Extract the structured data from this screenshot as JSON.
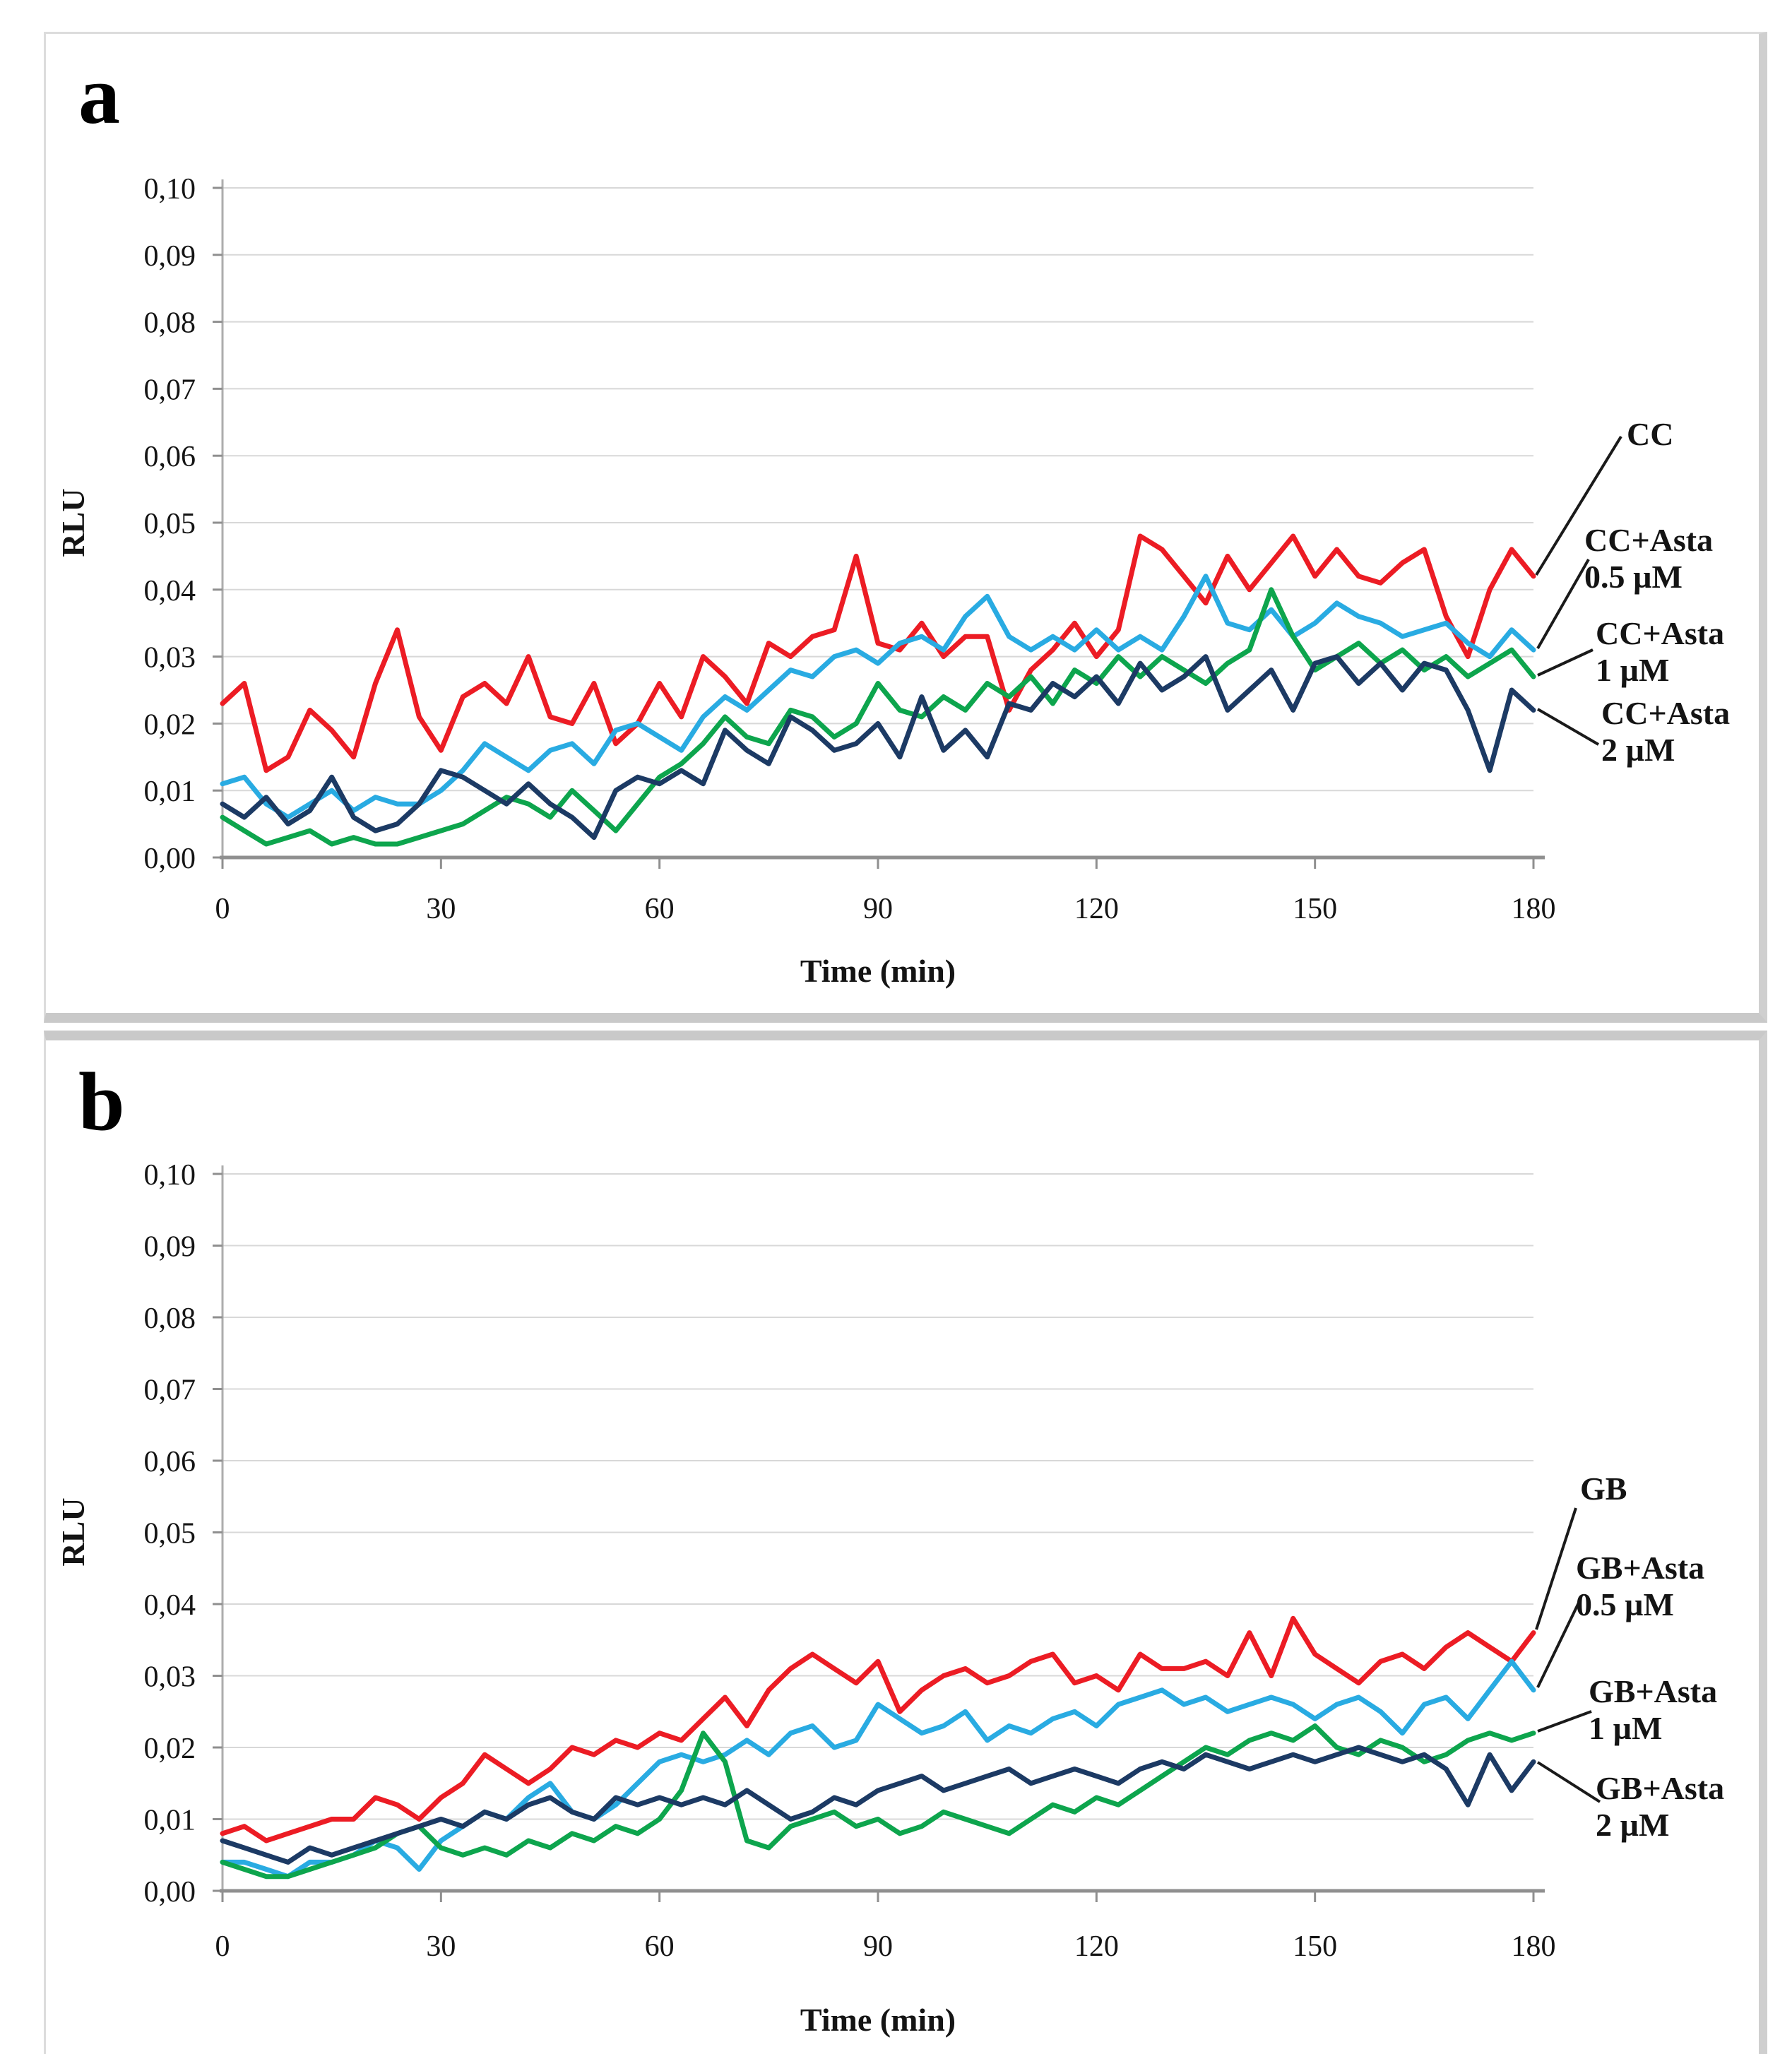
{
  "chart_data": [
    {
      "type": "line",
      "panel_label": "a",
      "xlabel": "Time (min)",
      "ylabel": "RLU",
      "xlim": [
        0,
        180
      ],
      "ylim": [
        0,
        0.1
      ],
      "x_ticks": [
        0,
        30,
        60,
        90,
        120,
        150,
        180
      ],
      "y_ticks": [
        0,
        0.01,
        0.02,
        0.03,
        0.04,
        0.05,
        0.06,
        0.07,
        0.08,
        0.09,
        0.1
      ],
      "y_tick_labels": [
        "0,00",
        "0,01",
        "0,02",
        "0,03",
        "0,04",
        "0,05",
        "0,06",
        "0,07",
        "0,08",
        "0,09",
        "0,10"
      ],
      "grid": true,
      "legend_position": "right",
      "x": [
        0,
        3,
        6,
        9,
        12,
        15,
        18,
        21,
        24,
        27,
        30,
        33,
        36,
        39,
        42,
        45,
        48,
        51,
        54,
        57,
        60,
        63,
        66,
        69,
        72,
        75,
        78,
        81,
        84,
        87,
        90,
        93,
        96,
        99,
        102,
        105,
        108,
        111,
        114,
        117,
        120,
        123,
        126,
        129,
        132,
        135,
        138,
        141,
        144,
        147,
        150,
        153,
        156,
        159,
        162,
        165,
        168,
        171,
        174,
        177,
        180
      ],
      "series": [
        {
          "name": "CC",
          "legend_lines": [
            "CC"
          ],
          "color": "#EC1C24",
          "values": [
            0.023,
            0.026,
            0.013,
            0.015,
            0.022,
            0.019,
            0.015,
            0.026,
            0.034,
            0.021,
            0.016,
            0.024,
            0.026,
            0.023,
            0.03,
            0.021,
            0.02,
            0.026,
            0.017,
            0.02,
            0.026,
            0.021,
            0.03,
            0.027,
            0.023,
            0.032,
            0.03,
            0.033,
            0.034,
            0.045,
            0.032,
            0.031,
            0.035,
            0.03,
            0.033,
            0.033,
            0.022,
            0.028,
            0.031,
            0.035,
            0.03,
            0.034,
            0.048,
            0.046,
            0.042,
            0.038,
            0.045,
            0.04,
            0.044,
            0.048,
            0.042,
            0.046,
            0.042,
            0.041,
            0.044,
            0.046,
            0.036,
            0.03,
            0.04,
            0.046,
            0.042
          ]
        },
        {
          "name": "CC+Asta 0.5 µM",
          "legend_lines": [
            "CC+Asta",
            "0.5 µM"
          ],
          "color": "#29ABE2",
          "values": [
            0.011,
            0.012,
            0.008,
            0.006,
            0.008,
            0.01,
            0.007,
            0.009,
            0.008,
            0.008,
            0.01,
            0.013,
            0.017,
            0.015,
            0.013,
            0.016,
            0.017,
            0.014,
            0.019,
            0.02,
            0.018,
            0.016,
            0.021,
            0.024,
            0.022,
            0.025,
            0.028,
            0.027,
            0.03,
            0.031,
            0.029,
            0.032,
            0.033,
            0.031,
            0.036,
            0.039,
            0.033,
            0.031,
            0.033,
            0.031,
            0.034,
            0.031,
            0.033,
            0.031,
            0.036,
            0.042,
            0.035,
            0.034,
            0.037,
            0.033,
            0.035,
            0.038,
            0.036,
            0.035,
            0.033,
            0.034,
            0.035,
            0.032,
            0.03,
            0.034,
            0.031
          ]
        },
        {
          "name": "CC+Asta 1 µM",
          "legend_lines": [
            "CC+Asta",
            "1 µM"
          ],
          "color": "#0DA54D",
          "values": [
            0.006,
            0.004,
            0.002,
            0.003,
            0.004,
            0.002,
            0.003,
            0.002,
            0.002,
            0.003,
            0.004,
            0.005,
            0.007,
            0.009,
            0.008,
            0.006,
            0.01,
            0.007,
            0.004,
            0.008,
            0.012,
            0.014,
            0.017,
            0.021,
            0.018,
            0.017,
            0.022,
            0.021,
            0.018,
            0.02,
            0.026,
            0.022,
            0.021,
            0.024,
            0.022,
            0.026,
            0.024,
            0.027,
            0.023,
            0.028,
            0.026,
            0.03,
            0.027,
            0.03,
            0.028,
            0.026,
            0.029,
            0.031,
            0.04,
            0.033,
            0.028,
            0.03,
            0.032,
            0.029,
            0.031,
            0.028,
            0.03,
            0.027,
            0.029,
            0.031,
            0.027
          ]
        },
        {
          "name": "CC+Asta 2 µM",
          "legend_lines": [
            "CC+Asta",
            "2 µM"
          ],
          "color": "#1C3A64",
          "values": [
            0.008,
            0.006,
            0.009,
            0.005,
            0.007,
            0.012,
            0.006,
            0.004,
            0.005,
            0.008,
            0.013,
            0.012,
            0.01,
            0.008,
            0.011,
            0.008,
            0.006,
            0.003,
            0.01,
            0.012,
            0.011,
            0.013,
            0.011,
            0.019,
            0.016,
            0.014,
            0.021,
            0.019,
            0.016,
            0.017,
            0.02,
            0.015,
            0.024,
            0.016,
            0.019,
            0.015,
            0.023,
            0.022,
            0.026,
            0.024,
            0.027,
            0.023,
            0.029,
            0.025,
            0.027,
            0.03,
            0.022,
            0.025,
            0.028,
            0.022,
            0.029,
            0.03,
            0.026,
            0.029,
            0.025,
            0.029,
            0.028,
            0.022,
            0.013,
            0.025,
            0.022
          ]
        }
      ]
    },
    {
      "type": "line",
      "panel_label": "b",
      "xlabel": "Time (min)",
      "ylabel": "RLU",
      "xlim": [
        0,
        180
      ],
      "ylim": [
        0,
        0.1
      ],
      "x_ticks": [
        0,
        30,
        60,
        90,
        120,
        150,
        180
      ],
      "y_ticks": [
        0,
        0.01,
        0.02,
        0.03,
        0.04,
        0.05,
        0.06,
        0.07,
        0.08,
        0.09,
        0.1
      ],
      "y_tick_labels": [
        "0,00",
        "0,01",
        "0,02",
        "0,03",
        "0,04",
        "0,05",
        "0,06",
        "0,07",
        "0,08",
        "0,09",
        "0,10"
      ],
      "grid": true,
      "legend_position": "right",
      "x": [
        0,
        3,
        6,
        9,
        12,
        15,
        18,
        21,
        24,
        27,
        30,
        33,
        36,
        39,
        42,
        45,
        48,
        51,
        54,
        57,
        60,
        63,
        66,
        69,
        72,
        75,
        78,
        81,
        84,
        87,
        90,
        93,
        96,
        99,
        102,
        105,
        108,
        111,
        114,
        117,
        120,
        123,
        126,
        129,
        132,
        135,
        138,
        141,
        144,
        147,
        150,
        153,
        156,
        159,
        162,
        165,
        168,
        171,
        174,
        177,
        180
      ],
      "series": [
        {
          "name": "GB",
          "legend_lines": [
            "GB"
          ],
          "color": "#EC1C24",
          "values": [
            0.008,
            0.009,
            0.007,
            0.008,
            0.009,
            0.01,
            0.01,
            0.013,
            0.012,
            0.01,
            0.013,
            0.015,
            0.019,
            0.017,
            0.015,
            0.017,
            0.02,
            0.019,
            0.021,
            0.02,
            0.022,
            0.021,
            0.024,
            0.027,
            0.023,
            0.028,
            0.031,
            0.033,
            0.031,
            0.029,
            0.032,
            0.025,
            0.028,
            0.03,
            0.031,
            0.029,
            0.03,
            0.032,
            0.033,
            0.029,
            0.03,
            0.028,
            0.033,
            0.031,
            0.031,
            0.032,
            0.03,
            0.036,
            0.03,
            0.038,
            0.033,
            0.031,
            0.029,
            0.032,
            0.033,
            0.031,
            0.034,
            0.036,
            0.034,
            0.032,
            0.036
          ]
        },
        {
          "name": "GB+Asta 0.5 µM",
          "legend_lines": [
            "GB+Asta",
            "0.5 µM"
          ],
          "color": "#29ABE2",
          "values": [
            0.004,
            0.004,
            0.003,
            0.002,
            0.004,
            0.004,
            0.005,
            0.007,
            0.006,
            0.003,
            0.007,
            0.009,
            0.011,
            0.01,
            0.013,
            0.015,
            0.011,
            0.01,
            0.012,
            0.015,
            0.018,
            0.019,
            0.018,
            0.019,
            0.021,
            0.019,
            0.022,
            0.023,
            0.02,
            0.021,
            0.026,
            0.024,
            0.022,
            0.023,
            0.025,
            0.021,
            0.023,
            0.022,
            0.024,
            0.025,
            0.023,
            0.026,
            0.027,
            0.028,
            0.026,
            0.027,
            0.025,
            0.026,
            0.027,
            0.026,
            0.024,
            0.026,
            0.027,
            0.025,
            0.022,
            0.026,
            0.027,
            0.024,
            0.028,
            0.032,
            0.028
          ]
        },
        {
          "name": "GB+Asta 1 µM",
          "legend_lines": [
            "GB+Asta",
            "1 µM"
          ],
          "color": "#0DA54D",
          "values": [
            0.004,
            0.003,
            0.002,
            0.002,
            0.003,
            0.004,
            0.005,
            0.006,
            0.008,
            0.009,
            0.006,
            0.005,
            0.006,
            0.005,
            0.007,
            0.006,
            0.008,
            0.007,
            0.009,
            0.008,
            0.01,
            0.014,
            0.022,
            0.018,
            0.007,
            0.006,
            0.009,
            0.01,
            0.011,
            0.009,
            0.01,
            0.008,
            0.009,
            0.011,
            0.01,
            0.009,
            0.008,
            0.01,
            0.012,
            0.011,
            0.013,
            0.012,
            0.014,
            0.016,
            0.018,
            0.02,
            0.019,
            0.021,
            0.022,
            0.021,
            0.023,
            0.02,
            0.019,
            0.021,
            0.02,
            0.018,
            0.019,
            0.021,
            0.022,
            0.021,
            0.022
          ]
        },
        {
          "name": "GB+Asta 2 µM",
          "legend_lines": [
            "GB+Asta",
            "2 µM"
          ],
          "color": "#1C3A64",
          "values": [
            0.007,
            0.006,
            0.005,
            0.004,
            0.006,
            0.005,
            0.006,
            0.007,
            0.008,
            0.009,
            0.01,
            0.009,
            0.011,
            0.01,
            0.012,
            0.013,
            0.011,
            0.01,
            0.013,
            0.012,
            0.013,
            0.012,
            0.013,
            0.012,
            0.014,
            0.012,
            0.01,
            0.011,
            0.013,
            0.012,
            0.014,
            0.015,
            0.016,
            0.014,
            0.015,
            0.016,
            0.017,
            0.015,
            0.016,
            0.017,
            0.016,
            0.015,
            0.017,
            0.018,
            0.017,
            0.019,
            0.018,
            0.017,
            0.018,
            0.019,
            0.018,
            0.019,
            0.02,
            0.019,
            0.018,
            0.019,
            0.017,
            0.012,
            0.019,
            0.014,
            0.018
          ]
        }
      ]
    }
  ]
}
